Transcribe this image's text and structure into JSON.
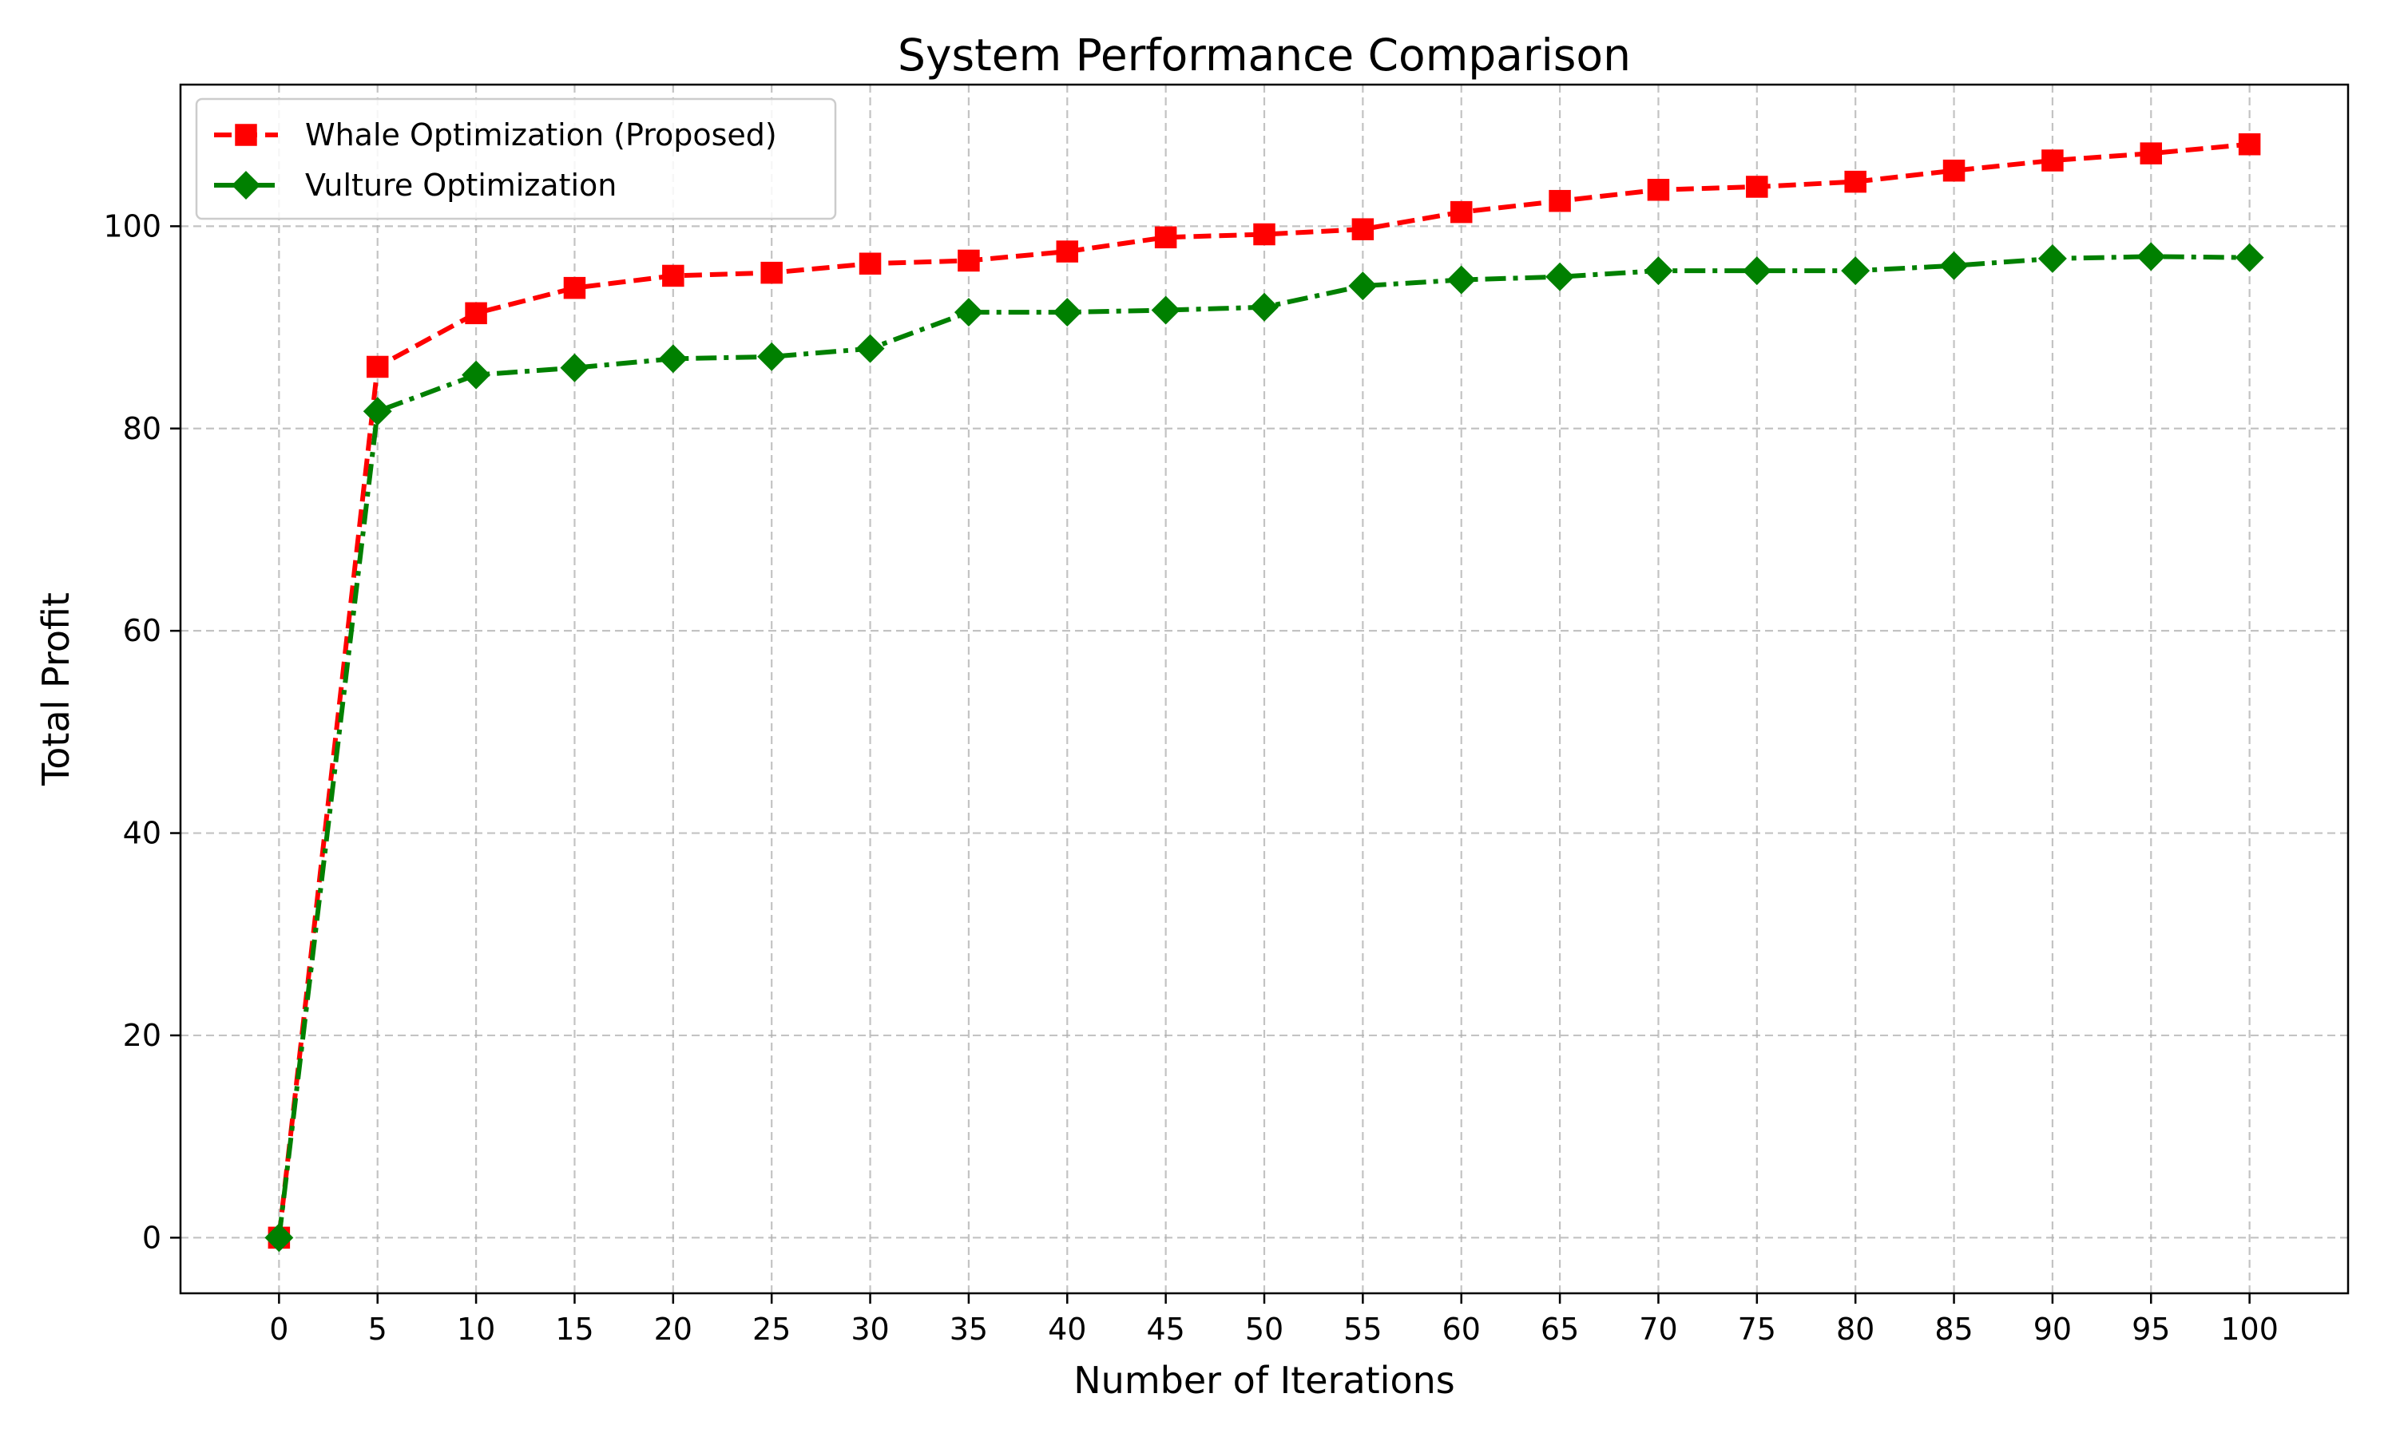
{
  "chart_data": {
    "type": "line",
    "title": "System Performance Comparison",
    "xlabel": "Number of Iterations",
    "ylabel": "Total Profit",
    "x": [
      0,
      5,
      10,
      15,
      20,
      25,
      30,
      35,
      40,
      45,
      50,
      55,
      60,
      65,
      70,
      75,
      80,
      85,
      90,
      95,
      100
    ],
    "xticks": [
      "0",
      "5",
      "10",
      "15",
      "20",
      "25",
      "30",
      "35",
      "40",
      "45",
      "50",
      "55",
      "60",
      "65",
      "70",
      "75",
      "80",
      "85",
      "90",
      "95",
      "100"
    ],
    "yticks": [
      0,
      20,
      40,
      60,
      80,
      100
    ],
    "xlim": [
      -5,
      105
    ],
    "ylim": [
      -5.5,
      114
    ],
    "grid": true,
    "legend_position": "upper-left",
    "series": [
      {
        "name": "Whale Optimization (Proposed)",
        "color": "#ff0000",
        "marker": "square",
        "linestyle": "dashed",
        "values": [
          0,
          86.1,
          91.4,
          93.9,
          95.1,
          95.4,
          96.3,
          96.6,
          97.5,
          98.9,
          99.2,
          99.7,
          101.4,
          102.5,
          103.6,
          103.9,
          104.4,
          105.5,
          106.5,
          107.2,
          108.1
        ]
      },
      {
        "name": "Vulture Optimization",
        "color": "#008000",
        "marker": "diamond",
        "linestyle": "dashdot",
        "values": [
          0,
          81.7,
          85.3,
          86.0,
          86.9,
          87.1,
          87.9,
          91.5,
          91.5,
          91.7,
          92.0,
          94.1,
          94.7,
          95.0,
          95.6,
          95.6,
          95.6,
          96.1,
          96.8,
          97.0,
          96.9
        ]
      }
    ]
  }
}
